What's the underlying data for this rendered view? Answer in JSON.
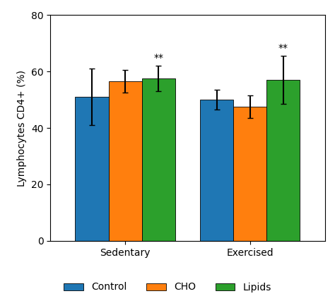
{
  "chart_data": {
    "type": "bar",
    "categories": [
      "Sedentary",
      "Exercised"
    ],
    "series": [
      {
        "name": "Control",
        "values": [
          51.0,
          50.0
        ],
        "errors": [
          10.0,
          3.5
        ]
      },
      {
        "name": "CHO",
        "values": [
          56.5,
          47.5
        ],
        "errors": [
          4.0,
          4.0
        ]
      },
      {
        "name": "Lipids",
        "values": [
          57.5,
          57.0
        ],
        "errors": [
          4.5,
          8.5
        ]
      }
    ],
    "annotations": [
      {
        "text": "**",
        "category": "Sedentary",
        "series": "Lipids"
      },
      {
        "text": "**",
        "category": "Exercised",
        "series": "Lipids"
      }
    ],
    "ylabel": "Lymphocytes CD4+ (%)",
    "ylim": [
      0,
      80
    ],
    "yticks": [
      0,
      20,
      40,
      60,
      80
    ],
    "legend": "lower center"
  }
}
